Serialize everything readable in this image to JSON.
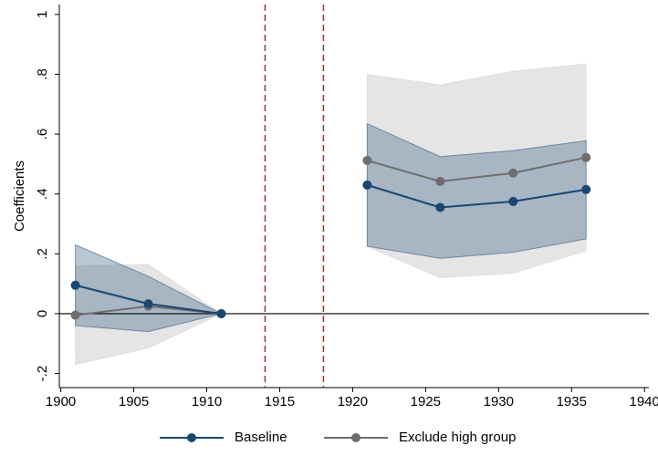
{
  "chart_data": {
    "type": "line",
    "y_label": "Coefficients",
    "x": [
      1901,
      1906,
      1911,
      null,
      1921,
      1926,
      1931,
      1936
    ],
    "series": [
      {
        "name": "Exclude high group",
        "color": "#6e6e6e",
        "band_color": "#d4d4d4",
        "values": [
          -0.005,
          0.025,
          0,
          null,
          0.512,
          0.442,
          0.47,
          0.522
        ],
        "lower": [
          -0.17,
          -0.115,
          0,
          null,
          0.225,
          0.12,
          0.135,
          0.21
        ],
        "upper": [
          0.16,
          0.165,
          0,
          null,
          0.8,
          0.765,
          0.81,
          0.835
        ]
      },
      {
        "name": "Baseline",
        "color": "#1a476f",
        "band_color": "#1a476f",
        "values": [
          0.095,
          0.033,
          0,
          null,
          0.43,
          0.355,
          0.375,
          0.415
        ],
        "lower": [
          -0.04,
          -0.06,
          0,
          null,
          0.225,
          0.185,
          0.205,
          0.25
        ],
        "upper": [
          0.23,
          0.125,
          0,
          null,
          0.635,
          0.525,
          0.545,
          0.578
        ]
      }
    ],
    "xlim": [
      1899.9,
      1940.3
    ],
    "xticks": [
      1900,
      1905,
      1910,
      1915,
      1920,
      1925,
      1930,
      1935,
      1940
    ],
    "ylim": [
      -0.247,
      1.033
    ],
    "yticks": [
      {
        "value": -0.2,
        "label": "-.2"
      },
      0,
      {
        "value": 0.2,
        "label": ".2"
      },
      {
        "value": 0.4,
        "label": ".4"
      },
      {
        "value": 0.6,
        "label": ".6"
      },
      {
        "value": 0.8,
        "label": ".8"
      },
      1
    ],
    "vlines": [
      1914,
      1918
    ],
    "vline_color": "#a03030",
    "hline": 0,
    "legend": "bottom"
  }
}
